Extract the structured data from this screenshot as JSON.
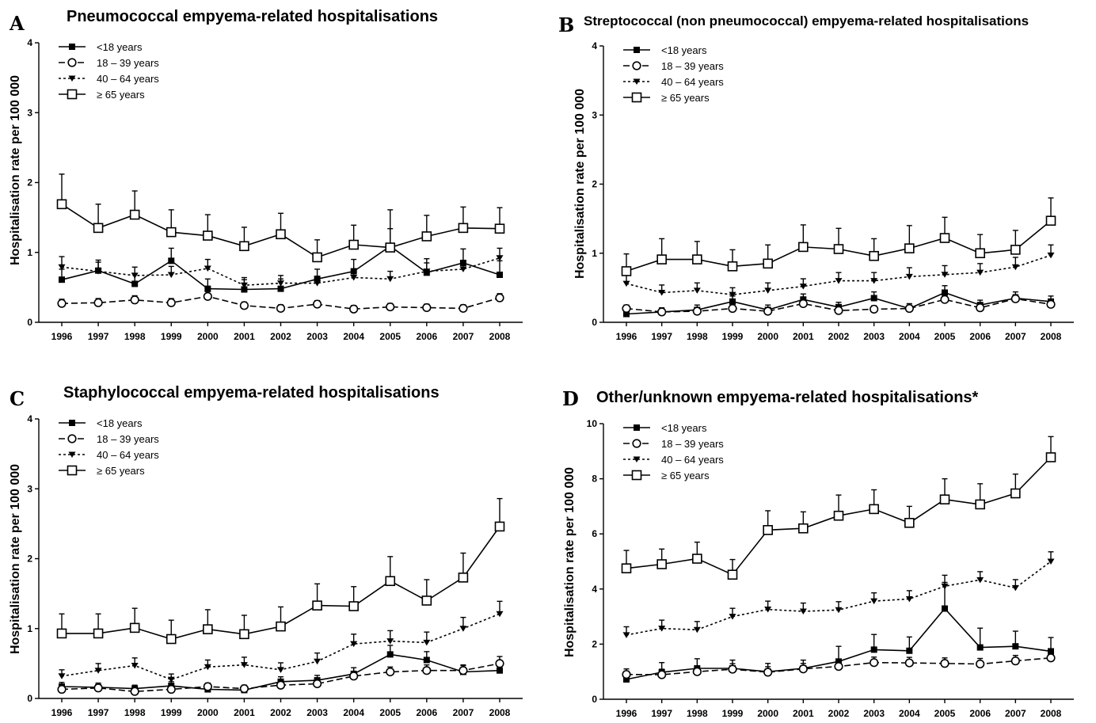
{
  "chart_data": [
    {
      "panel": "A",
      "type": "line",
      "title": "Pneumococcal empyema-related hospitalisations",
      "xlabel": "",
      "ylabel": "Hospitalisation rate per 100 000",
      "ylim": [
        0,
        4
      ],
      "yticks": [
        "0",
        "1",
        "2",
        "3",
        "4"
      ],
      "legend": "top-left",
      "x": [
        "1996",
        "1997",
        "1998",
        "1999",
        "2000",
        "2001",
        "2002",
        "2003",
        "2004",
        "2005",
        "2006",
        "2007",
        "2008"
      ],
      "series": [
        {
          "name": "<18 years",
          "marker": "filled-square",
          "dash": "solid",
          "values": [
            0.61,
            0.74,
            0.55,
            0.88,
            0.48,
            0.47,
            0.48,
            0.62,
            0.73,
            1.09,
            0.71,
            0.85,
            0.68
          ],
          "err": [
            0.15,
            0.15,
            0.15,
            0.18,
            0.14,
            0.14,
            0.14,
            0.14,
            0.17,
            0.52,
            0.2,
            0.2,
            0.2
          ]
        },
        {
          "name": "18 – 39 years",
          "marker": "open-circle",
          "dash": "longdash",
          "values": [
            0.27,
            0.28,
            0.32,
            0.28,
            0.37,
            0.24,
            0.2,
            0.26,
            0.19,
            0.22,
            0.21,
            0.2,
            0.35
          ],
          "err": [
            0.06,
            0.06,
            0.06,
            0.06,
            0.07,
            0.05,
            0.05,
            0.05,
            0.05,
            0.05,
            0.05,
            0.05,
            0.06
          ]
        },
        {
          "name": "40 – 64 years",
          "marker": "filled-triangle-down",
          "dash": "shortdash",
          "values": [
            0.79,
            0.73,
            0.67,
            0.68,
            0.77,
            0.53,
            0.56,
            0.56,
            0.64,
            0.62,
            0.73,
            0.76,
            0.92
          ],
          "err": [
            0.15,
            0.13,
            0.12,
            0.12,
            0.13,
            0.11,
            0.11,
            0.1,
            0.11,
            0.11,
            0.12,
            0.12,
            0.14
          ]
        },
        {
          "name": "≥ 65 years",
          "marker": "open-square",
          "dash": "solid",
          "values": [
            1.69,
            1.35,
            1.54,
            1.29,
            1.24,
            1.09,
            1.26,
            0.93,
            1.11,
            1.07,
            1.23,
            1.35,
            1.34
          ],
          "err": [
            0.43,
            0.34,
            0.34,
            0.32,
            0.3,
            0.27,
            0.3,
            0.25,
            0.28,
            0.27,
            0.3,
            0.3,
            0.3
          ]
        }
      ]
    },
    {
      "panel": "B",
      "type": "line",
      "title": "Streptococcal (non pneumococcal) empyema-related hospitalisations",
      "xlabel": "",
      "ylabel": "Hospitalisation rate per 100 000",
      "ylim": [
        0,
        4
      ],
      "yticks": [
        "0",
        "1",
        "2",
        "3",
        "4"
      ],
      "legend": "top-left",
      "x": [
        "1996",
        "1997",
        "1998",
        "1999",
        "2000",
        "2001",
        "2002",
        "2003",
        "2004",
        "2005",
        "2006",
        "2007",
        "2008"
      ],
      "series": [
        {
          "name": "<18 years",
          "marker": "filled-square",
          "dash": "solid",
          "values": [
            0.12,
            0.15,
            0.18,
            0.3,
            0.18,
            0.33,
            0.22,
            0.35,
            0.2,
            0.43,
            0.25,
            0.35,
            0.3
          ],
          "err": [
            0.06,
            0.06,
            0.07,
            0.08,
            0.07,
            0.08,
            0.07,
            0.09,
            0.07,
            0.1,
            0.07,
            0.09,
            0.08
          ]
        },
        {
          "name": "18 – 39 years",
          "marker": "open-circle",
          "dash": "longdash",
          "values": [
            0.2,
            0.15,
            0.16,
            0.2,
            0.16,
            0.27,
            0.17,
            0.19,
            0.2,
            0.33,
            0.21,
            0.34,
            0.26
          ],
          "err": [
            0.05,
            0.05,
            0.05,
            0.05,
            0.05,
            0.06,
            0.05,
            0.05,
            0.05,
            0.06,
            0.05,
            0.06,
            0.05
          ]
        },
        {
          "name": "40 – 64 years",
          "marker": "filled-triangle-down",
          "dash": "shortdash",
          "values": [
            0.56,
            0.43,
            0.46,
            0.4,
            0.46,
            0.52,
            0.6,
            0.6,
            0.66,
            0.69,
            0.72,
            0.8,
            0.97
          ],
          "err": [
            0.12,
            0.11,
            0.11,
            0.1,
            0.11,
            0.11,
            0.12,
            0.12,
            0.13,
            0.13,
            0.13,
            0.14,
            0.15
          ]
        },
        {
          "name": "≥ 65 years",
          "marker": "open-square",
          "dash": "solid",
          "values": [
            0.74,
            0.91,
            0.91,
            0.81,
            0.85,
            1.09,
            1.06,
            0.96,
            1.07,
            1.22,
            1.0,
            1.05,
            1.47
          ],
          "err": [
            0.25,
            0.3,
            0.26,
            0.24,
            0.27,
            0.32,
            0.3,
            0.25,
            0.33,
            0.3,
            0.27,
            0.28,
            0.33
          ]
        }
      ]
    },
    {
      "panel": "C",
      "type": "line",
      "title": "Staphylococcal empyema-related hospitalisations",
      "xlabel": "",
      "ylabel": "Hospitalisation rate per 100 000",
      "ylim": [
        0,
        4
      ],
      "yticks": [
        "0",
        "1",
        "2",
        "3",
        "4"
      ],
      "legend": "top-left",
      "x": [
        "1996",
        "1997",
        "1998",
        "1999",
        "2000",
        "2001",
        "2002",
        "2003",
        "2004",
        "2005",
        "2006",
        "2007",
        "2008"
      ],
      "series": [
        {
          "name": "<18 years",
          "marker": "filled-square",
          "dash": "solid",
          "values": [
            0.17,
            0.16,
            0.14,
            0.18,
            0.13,
            0.12,
            0.24,
            0.26,
            0.35,
            0.63,
            0.55,
            0.38,
            0.4
          ],
          "err": [
            0.06,
            0.06,
            0.05,
            0.06,
            0.05,
            0.05,
            0.07,
            0.07,
            0.09,
            0.13,
            0.12,
            0.09,
            0.1
          ]
        },
        {
          "name": "18 – 39 years",
          "marker": "open-circle",
          "dash": "longdash",
          "values": [
            0.13,
            0.15,
            0.1,
            0.13,
            0.17,
            0.14,
            0.19,
            0.21,
            0.32,
            0.38,
            0.4,
            0.4,
            0.5
          ],
          "err": [
            0.05,
            0.05,
            0.04,
            0.05,
            0.05,
            0.05,
            0.05,
            0.06,
            0.07,
            0.07,
            0.08,
            0.08,
            0.1
          ]
        },
        {
          "name": "40 – 64 years",
          "marker": "filled-triangle-down",
          "dash": "shortdash",
          "values": [
            0.32,
            0.4,
            0.47,
            0.27,
            0.45,
            0.48,
            0.41,
            0.53,
            0.78,
            0.82,
            0.8,
            1.0,
            1.21
          ],
          "err": [
            0.09,
            0.1,
            0.11,
            0.08,
            0.1,
            0.11,
            0.1,
            0.12,
            0.14,
            0.15,
            0.15,
            0.16,
            0.18
          ]
        },
        {
          "name": "≥ 65 years",
          "marker": "open-square",
          "dash": "solid",
          "values": [
            0.93,
            0.93,
            1.01,
            0.85,
            0.99,
            0.92,
            1.03,
            1.33,
            1.32,
            1.68,
            1.4,
            1.73,
            2.46
          ],
          "err": [
            0.28,
            0.28,
            0.28,
            0.27,
            0.28,
            0.27,
            0.28,
            0.31,
            0.28,
            0.35,
            0.3,
            0.35,
            0.4
          ]
        }
      ]
    },
    {
      "panel": "D",
      "type": "line",
      "title": "Other/unknown empyema-related hospitalisations*",
      "xlabel": "",
      "ylabel": "Hospitalisation rate per 100 000",
      "ylim": [
        0,
        10
      ],
      "yticks": [
        "0",
        "2",
        "4",
        "6",
        "8",
        "10"
      ],
      "legend": "top-left",
      "x": [
        "1996",
        "1997",
        "1998",
        "1999",
        "2000",
        "2001",
        "2002",
        "2003",
        "2004",
        "2005",
        "2006",
        "2007",
        "2008"
      ],
      "series": [
        {
          "name": "<18 years",
          "marker": "filled-square",
          "dash": "solid",
          "values": [
            0.72,
            0.98,
            1.12,
            1.12,
            1.0,
            1.12,
            1.37,
            1.8,
            1.76,
            3.29,
            1.88,
            1.92,
            1.74
          ],
          "err": [
            0.3,
            0.35,
            0.35,
            0.3,
            0.3,
            0.3,
            0.55,
            0.55,
            0.5,
            0.95,
            0.7,
            0.55,
            0.5
          ]
        },
        {
          "name": "18 – 39 years",
          "marker": "open-circle",
          "dash": "longdash",
          "values": [
            0.9,
            0.89,
            1.0,
            1.09,
            0.98,
            1.1,
            1.19,
            1.33,
            1.32,
            1.3,
            1.28,
            1.39,
            1.5
          ],
          "err": [
            0.2,
            0.2,
            0.2,
            0.2,
            0.2,
            0.2,
            0.2,
            0.2,
            0.2,
            0.2,
            0.2,
            0.2,
            0.2
          ]
        },
        {
          "name": "40 – 64 years",
          "marker": "filled-triangle-down",
          "dash": "shortdash",
          "values": [
            2.33,
            2.57,
            2.52,
            3.0,
            3.26,
            3.19,
            3.24,
            3.56,
            3.64,
            4.1,
            4.33,
            4.04,
            5.0
          ],
          "err": [
            0.3,
            0.3,
            0.3,
            0.3,
            0.3,
            0.3,
            0.3,
            0.3,
            0.3,
            0.4,
            0.3,
            0.3,
            0.35
          ]
        },
        {
          "name": "≥ 65 years",
          "marker": "open-square",
          "dash": "solid",
          "values": [
            4.75,
            4.9,
            5.1,
            4.52,
            6.14,
            6.2,
            6.66,
            6.9,
            6.4,
            7.25,
            7.07,
            7.47,
            8.78
          ],
          "err": [
            0.65,
            0.55,
            0.6,
            0.55,
            0.7,
            0.6,
            0.75,
            0.7,
            0.6,
            0.75,
            0.75,
            0.7,
            0.75
          ]
        }
      ]
    }
  ]
}
